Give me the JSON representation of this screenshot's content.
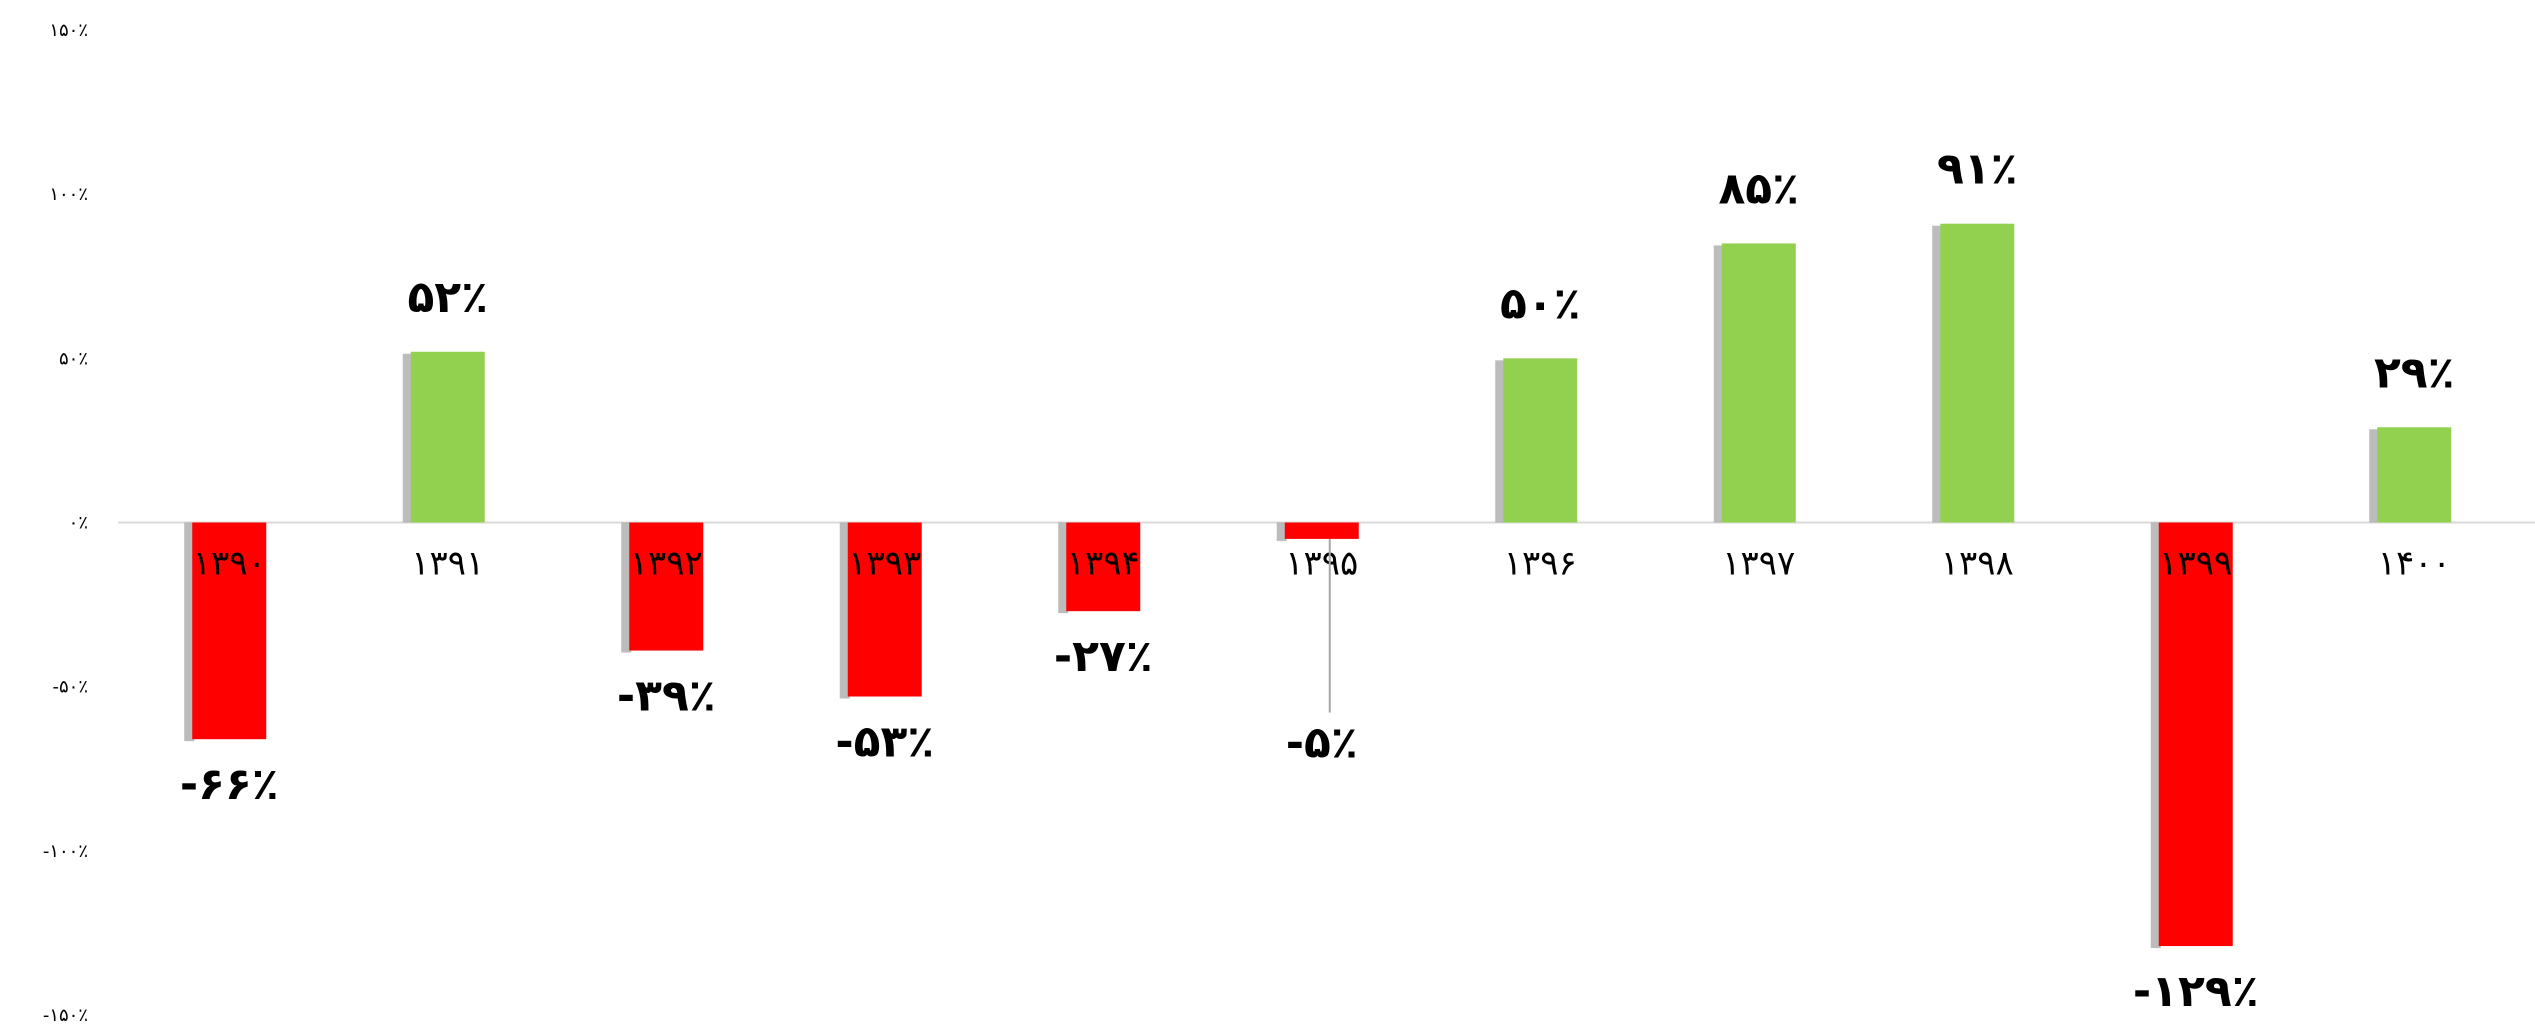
{
  "chart_data": {
    "type": "bar",
    "categories": [
      "۱۳۹۰",
      "۱۳۹۱",
      "۱۳۹۲",
      "۱۳۹۳",
      "۱۳۹۴",
      "۱۳۹۵",
      "۱۳۹۶",
      "۱۳۹۷",
      "۱۳۹۸",
      "۱۳۹۹",
      "۱۴۰۰"
    ],
    "values": [
      -66,
      52,
      -39,
      -53,
      -27,
      -5,
      50,
      85,
      91,
      -129,
      29
    ],
    "data_labels": [
      "-۶۶٪",
      "۵۲٪",
      "-۳۹٪",
      "-۵۳٪",
      "-۲۷٪",
      "-۵٪",
      "۵۰٪",
      "۸۵٪",
      "۹۱٪",
      "-۱۲۹٪",
      "۲۹٪"
    ],
    "yticks": [
      150,
      100,
      50,
      0,
      -50,
      -100,
      -150
    ],
    "ytick_labels": [
      "۱۵۰٪",
      "۱۰۰٪",
      "۵۰٪",
      "۰٪",
      "-۵۰٪",
      "-۱۰۰٪",
      "-۱۵۰٪"
    ],
    "ylim": [
      -150,
      150
    ],
    "title": "",
    "xlabel": "",
    "ylabel": "",
    "grid": false,
    "legend": "none",
    "colors": {
      "positive": "#92D050",
      "negative": "#FF0000",
      "shadow": "#A6A6A6",
      "axis": "#D9D9D9"
    }
  }
}
